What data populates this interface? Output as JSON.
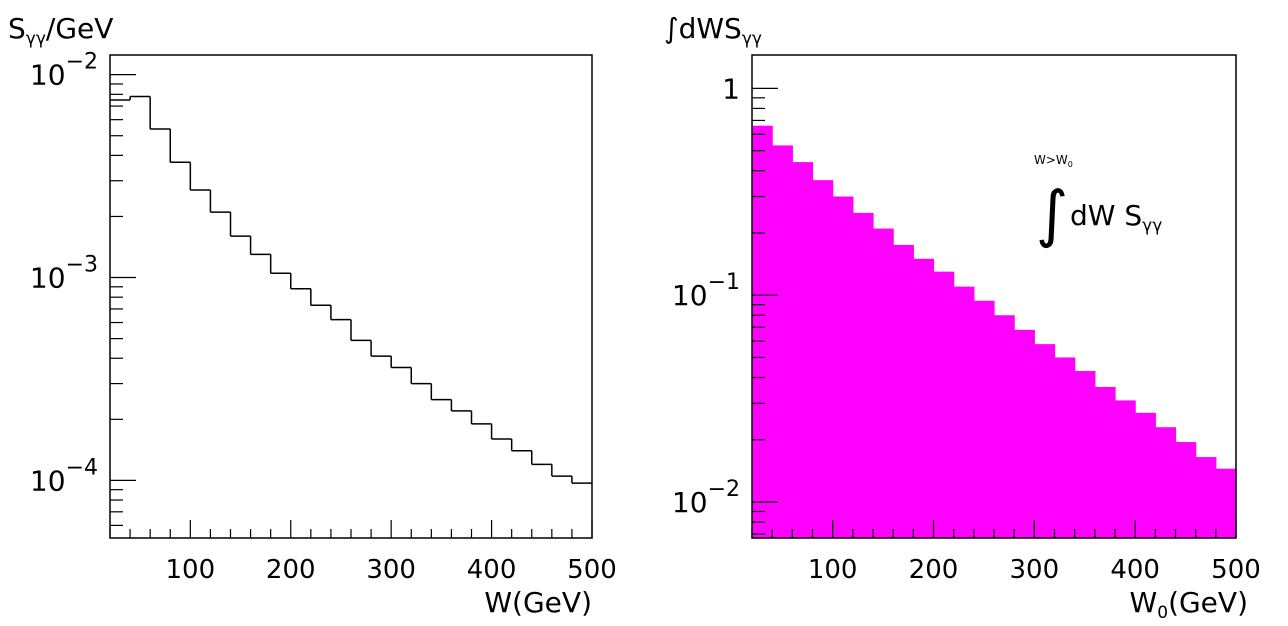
{
  "chart_data": [
    {
      "type": "histogram",
      "ylabel": "S",
      "ylabel_sub": "γγ",
      "ylabel_tail": "/GeV",
      "xlabel": "W(GeV)",
      "xlim": [
        20,
        500
      ],
      "ylim": [
        5.2e-05,
        0.0125
      ],
      "yscale": "log",
      "x_ticks": [
        "100",
        "200",
        "300",
        "400",
        "500"
      ],
      "y_ticks": [
        {
          "base": "10",
          "exp": "−2"
        },
        {
          "base": "10",
          "exp": "−3"
        },
        {
          "base": "10",
          "exp": "−4"
        }
      ],
      "grid": false,
      "fill": "none",
      "bins_x": [
        20,
        40,
        60,
        80,
        100,
        120,
        140,
        160,
        180,
        200,
        220,
        240,
        260,
        280,
        300,
        320,
        340,
        360,
        380,
        400,
        420,
        440,
        460,
        480,
        500
      ],
      "values": [
        0.0075,
        0.0078,
        0.0054,
        0.0037,
        0.0027,
        0.0021,
        0.0016,
        0.0013,
        0.00105,
        0.00088,
        0.00073,
        0.00062,
        0.00049,
        0.00041,
        0.00036,
        0.0003,
        0.00025,
        0.00022,
        0.00019,
        0.00016,
        0.00014,
        0.00012,
        0.000105,
        9.7e-05
      ]
    },
    {
      "type": "histogram",
      "ylabel": "∫dWS",
      "ylabel_sub": "γγ",
      "xlabel": "W",
      "xlabel_sub": "0",
      "xlabel_tail": "(GeV)",
      "xlim": [
        20,
        500
      ],
      "ylim": [
        0.0067,
        1.45
      ],
      "yscale": "log",
      "x_ticks": [
        "100",
        "200",
        "300",
        "400",
        "500"
      ],
      "y_ticks": [
        {
          "base": "1",
          "exp": ""
        },
        {
          "base": "10",
          "exp": "−1"
        },
        {
          "base": "10",
          "exp": "−2"
        }
      ],
      "grid": false,
      "fill": "#ff00ff",
      "annotation": {
        "upper": "W>W",
        "upper_sub": "0",
        "symbol": "∫",
        "main": "dW S",
        "main_sub": "γγ"
      },
      "bins_x": [
        20,
        40,
        60,
        80,
        100,
        120,
        140,
        160,
        180,
        200,
        220,
        240,
        260,
        280,
        300,
        320,
        340,
        360,
        380,
        400,
        420,
        440,
        460,
        480,
        500
      ],
      "values": [
        0.66,
        0.53,
        0.44,
        0.36,
        0.3,
        0.25,
        0.21,
        0.175,
        0.15,
        0.13,
        0.11,
        0.094,
        0.08,
        0.068,
        0.058,
        0.05,
        0.043,
        0.036,
        0.031,
        0.027,
        0.023,
        0.0195,
        0.0165,
        0.0145
      ]
    }
  ]
}
